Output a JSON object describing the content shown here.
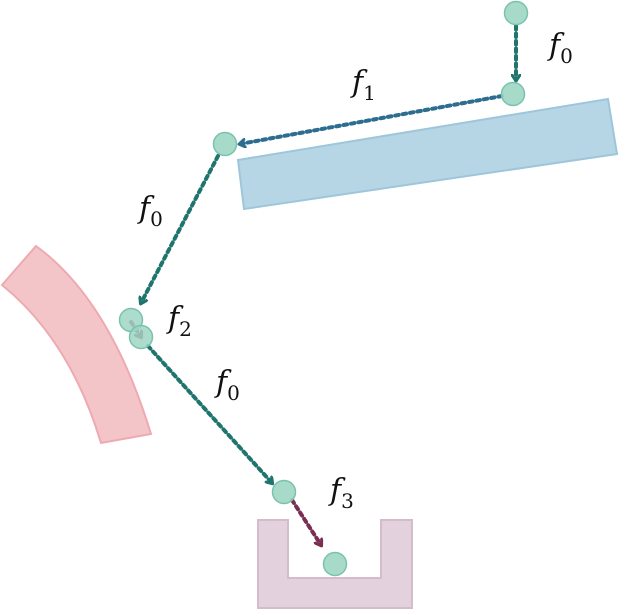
{
  "labels": {
    "transition_1": {
      "base": "f",
      "sub": "0"
    },
    "transition_2": {
      "base": "f",
      "sub": "1"
    },
    "transition_3": {
      "base": "f",
      "sub": "0"
    },
    "transition_4": {
      "base": "f",
      "sub": "2"
    },
    "transition_5": {
      "base": "f",
      "sub": "0"
    },
    "transition_6": {
      "base": "f",
      "sub": "3"
    }
  },
  "colors": {
    "state_fill": "#9fd6c4",
    "state_stroke": "#79c2ad",
    "f0_arrow": "#1f756d",
    "f1_arrow": "#2d6d8f",
    "f2_f3_arrow": "#7a2e52",
    "blue_surface": "#b6d6e6",
    "blue_surface_edge": "#9ec6da",
    "red_surface": "#f4c5c8",
    "red_surface_edge": "#eeaab0",
    "purple_container": "#e3d2dd",
    "purple_container_edge": "#d4bccb"
  }
}
